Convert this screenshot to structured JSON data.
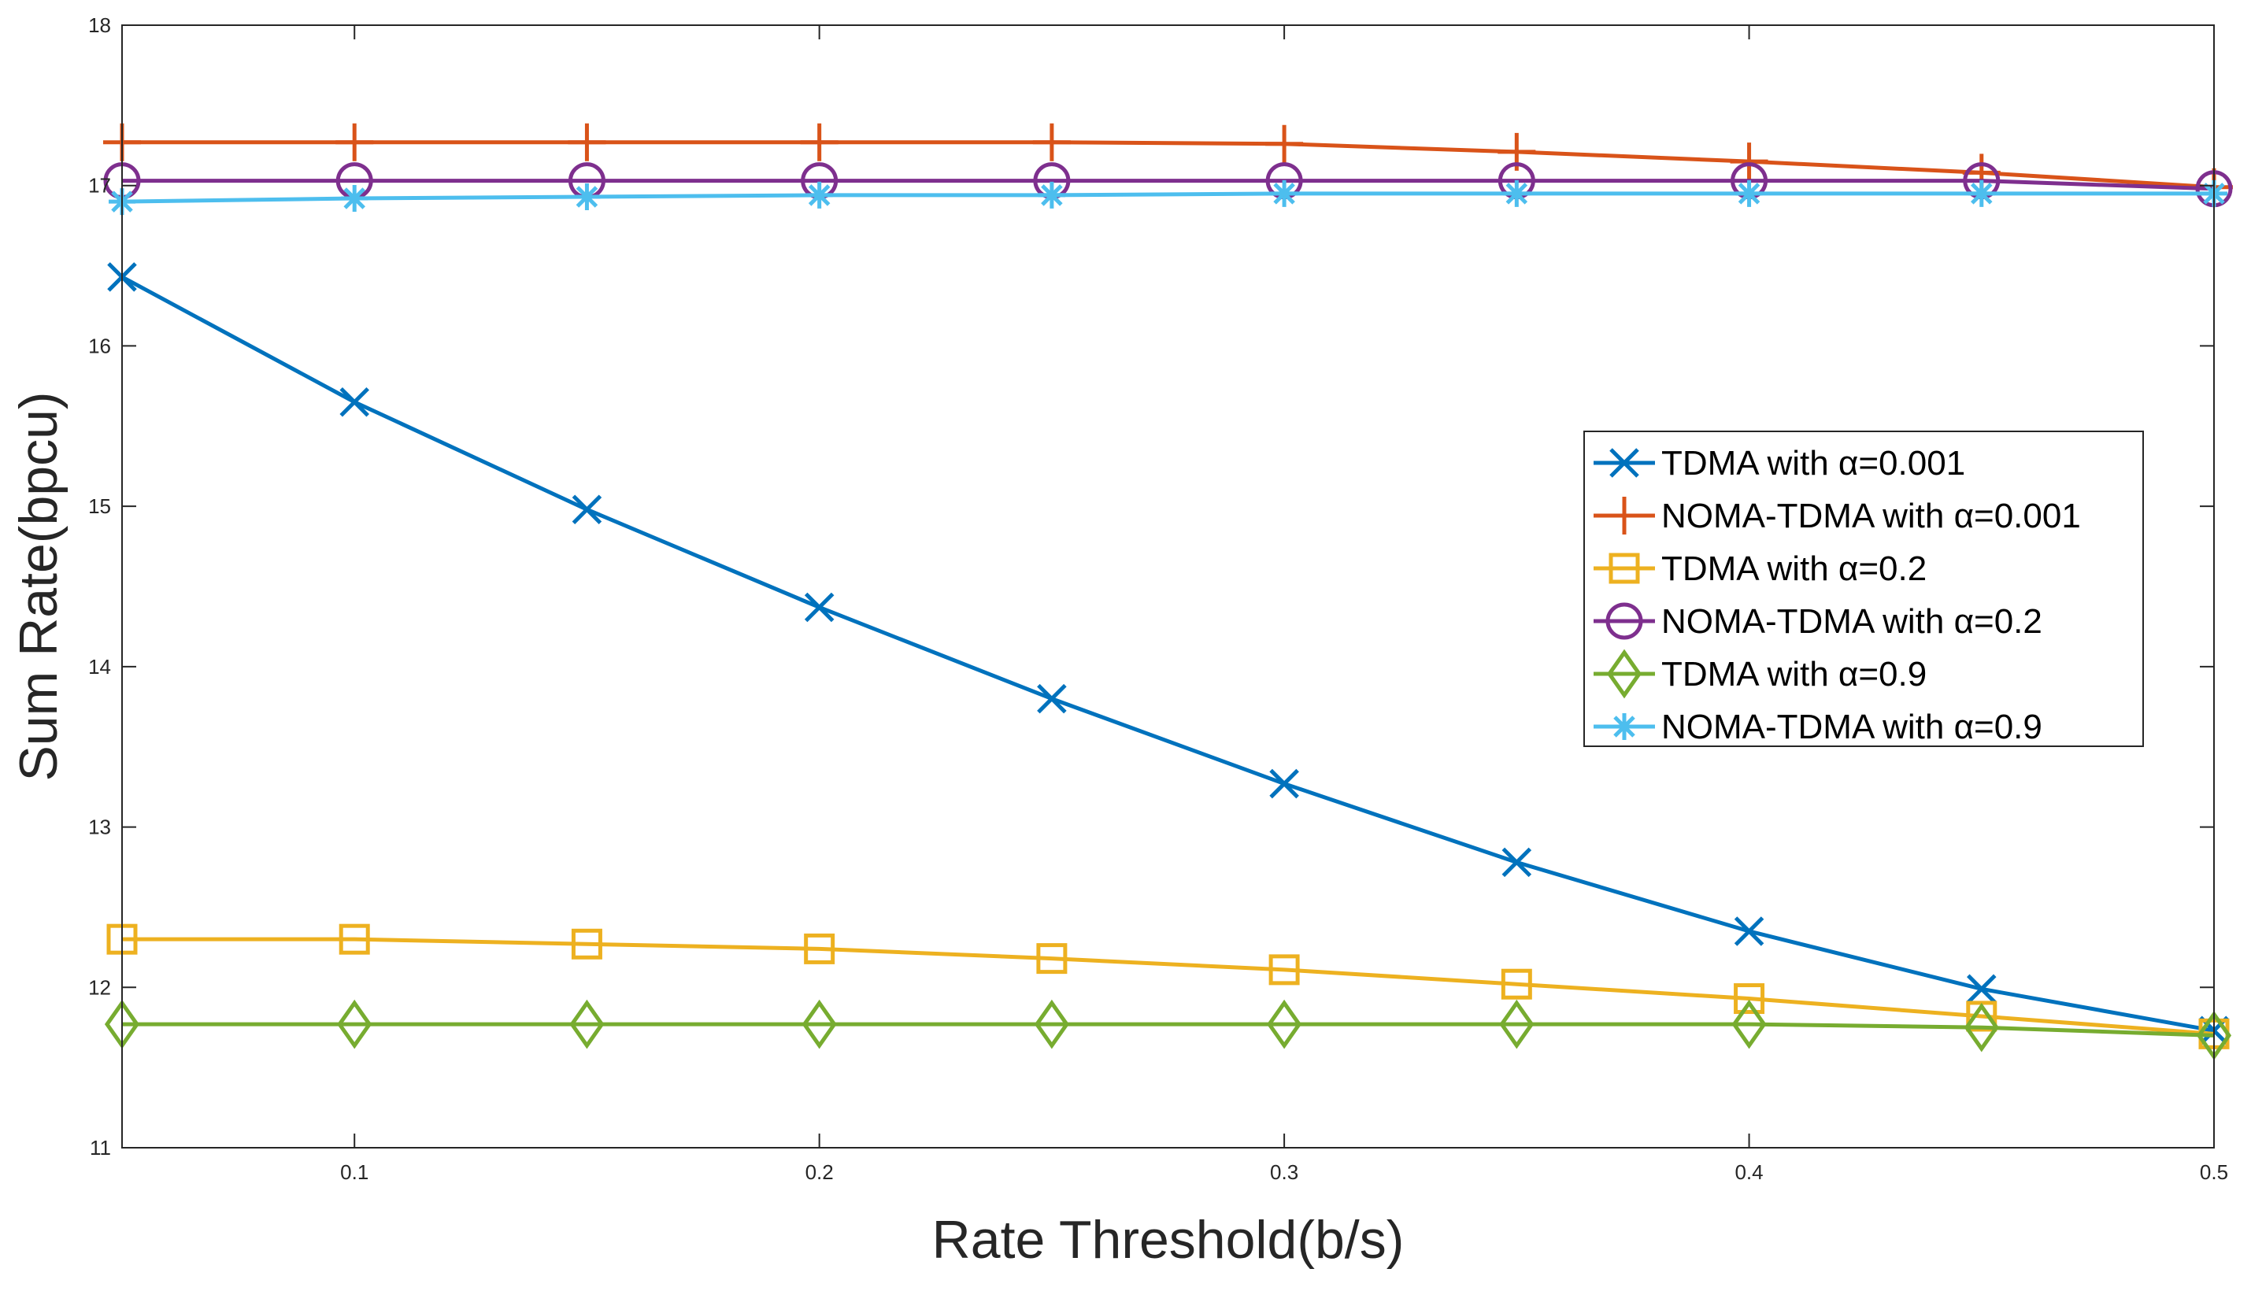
{
  "chart_data": {
    "type": "line",
    "title": "",
    "xlabel": "Rate Threshold(b/s)",
    "ylabel": "Sum Rate(bpcu)",
    "xlim": [
      0.05,
      0.5
    ],
    "ylim": [
      11,
      18
    ],
    "xticks": [
      0.1,
      0.2,
      0.3,
      0.4,
      0.5
    ],
    "xtick_labels": [
      "0.1",
      "0.2",
      "0.3",
      "0.4",
      "0.5"
    ],
    "yticks": [
      11,
      12,
      13,
      14,
      15,
      16,
      17,
      18
    ],
    "ytick_labels": [
      "11",
      "12",
      "13",
      "14",
      "15",
      "16",
      "17",
      "18"
    ],
    "grid": false,
    "legend_position": "right-middle",
    "x": [
      0.05,
      0.1,
      0.15,
      0.2,
      0.25,
      0.3,
      0.35,
      0.4,
      0.45,
      0.5
    ],
    "series": [
      {
        "name": "TDMA with α=0.001",
        "color": "#0072BD",
        "marker": "x",
        "values": [
          16.43,
          15.65,
          14.98,
          14.37,
          13.8,
          13.27,
          12.78,
          12.35,
          11.99,
          11.73
        ]
      },
      {
        "name": "NOMA-TDMA with α=0.001",
        "color": "#D95319",
        "marker": "plus",
        "values": [
          17.27,
          17.27,
          17.27,
          17.27,
          17.27,
          17.26,
          17.21,
          17.15,
          17.08,
          16.99
        ]
      },
      {
        "name": "TDMA with α=0.2",
        "color": "#EDB120",
        "marker": "square",
        "values": [
          12.3,
          12.3,
          12.27,
          12.24,
          12.18,
          12.11,
          12.02,
          11.93,
          11.82,
          11.71
        ]
      },
      {
        "name": "NOMA-TDMA with α=0.2",
        "color": "#7E2F8E",
        "marker": "circle",
        "values": [
          17.03,
          17.03,
          17.03,
          17.03,
          17.03,
          17.03,
          17.03,
          17.03,
          17.03,
          16.98
        ]
      },
      {
        "name": "TDMA with α=0.9",
        "color": "#77AC30",
        "marker": "diamond",
        "values": [
          11.77,
          11.77,
          11.77,
          11.77,
          11.77,
          11.77,
          11.77,
          11.77,
          11.75,
          11.7
        ]
      },
      {
        "name": "NOMA-TDMA with α=0.9",
        "color": "#4DBEEE",
        "marker": "asterisk",
        "values": [
          16.9,
          16.92,
          16.93,
          16.94,
          16.94,
          16.95,
          16.95,
          16.95,
          16.95,
          16.95
        ]
      }
    ]
  }
}
